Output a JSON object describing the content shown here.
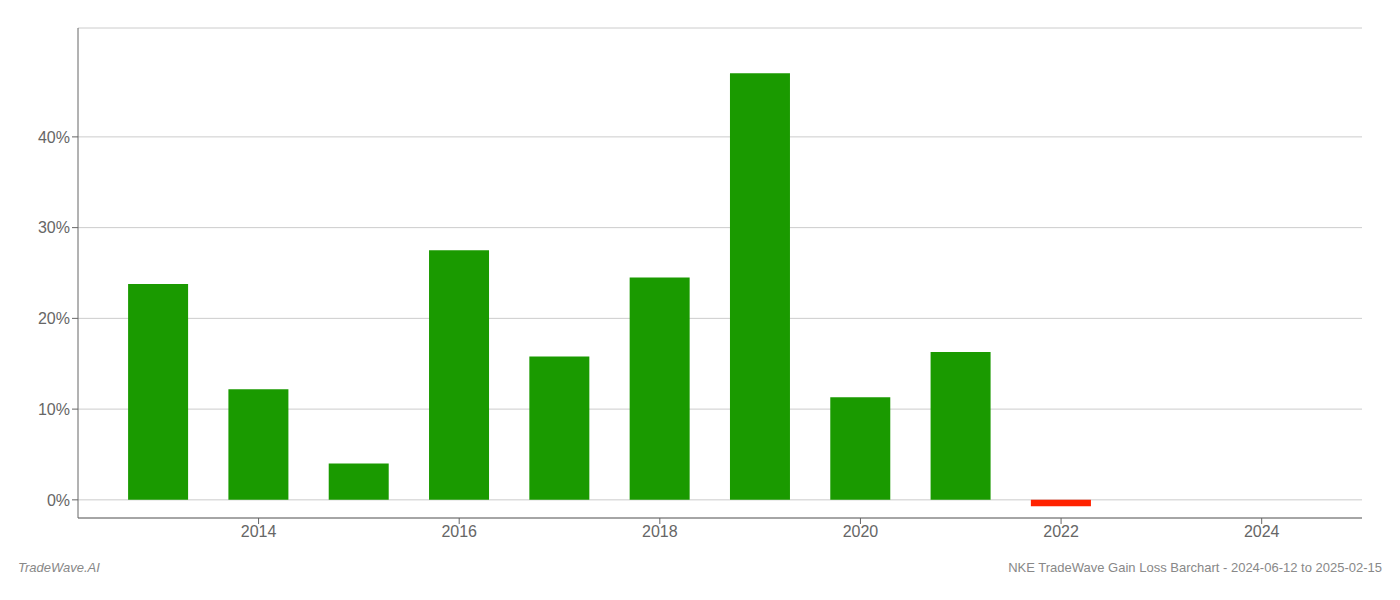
{
  "chart_data": {
    "type": "bar",
    "x": [
      2013,
      2014,
      2015,
      2016,
      2017,
      2018,
      2019,
      2020,
      2021,
      2022,
      2023
    ],
    "values": [
      0.238,
      0.122,
      0.04,
      0.275,
      0.158,
      0.245,
      0.47,
      0.113,
      0.163,
      -0.007,
      0.0
    ],
    "colors": [
      "#1a9a00",
      "#1a9a00",
      "#1a9a00",
      "#1a9a00",
      "#1a9a00",
      "#1a9a00",
      "#1a9a00",
      "#1a9a00",
      "#1a9a00",
      "#ff2200",
      "#ffffff"
    ],
    "xlim": [
      2012.2,
      2025.0
    ],
    "xticks": [
      2014,
      2016,
      2018,
      2020,
      2022,
      2024
    ],
    "ylim": [
      -0.02,
      0.52
    ],
    "yticks": [
      {
        "value": 0.0,
        "label": "0%"
      },
      {
        "value": 0.1,
        "label": "10%"
      },
      {
        "value": 0.2,
        "label": "20%"
      },
      {
        "value": 0.3,
        "label": "30%"
      },
      {
        "value": 0.4,
        "label": "40%"
      }
    ],
    "grid": true,
    "annotations": [
      "TradeWave.AI",
      "NKE TradeWave Gain Loss Barchart - 2024-06-12 to 2025-02-15"
    ]
  }
}
